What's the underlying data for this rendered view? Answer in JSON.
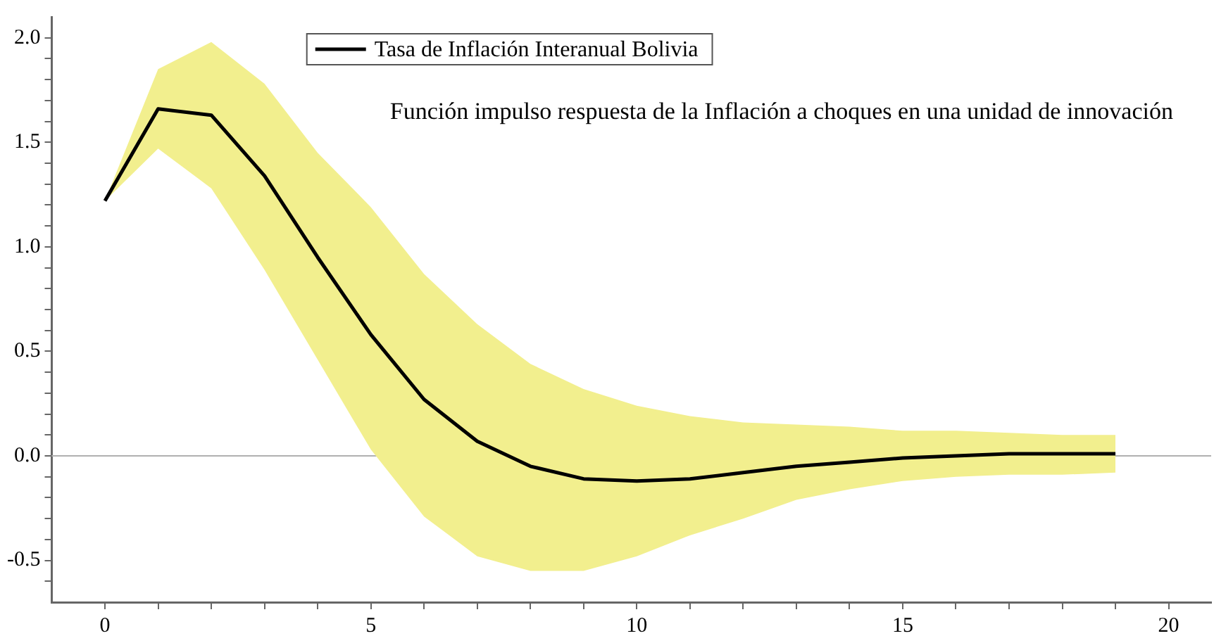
{
  "chart_data": {
    "type": "line",
    "annotations": [
      "Función impulso respuesta de la Inflación a choques en una unidad de innovación"
    ],
    "x": [
      0,
      1,
      2,
      3,
      4,
      5,
      6,
      7,
      8,
      9,
      10,
      11,
      12,
      13,
      14,
      15,
      16,
      17,
      18,
      19
    ],
    "series": [
      {
        "name": "Tasa de Inflación Interanual Bolivia",
        "color": "#000000",
        "values": [
          1.22,
          1.66,
          1.63,
          1.34,
          0.95,
          0.58,
          0.27,
          0.07,
          -0.05,
          -0.11,
          -0.12,
          -0.11,
          -0.08,
          -0.05,
          -0.03,
          -0.01,
          0.0,
          0.01,
          0.01,
          0.01
        ],
        "upper": [
          1.22,
          1.85,
          1.98,
          1.78,
          1.45,
          1.19,
          0.87,
          0.63,
          0.44,
          0.32,
          0.24,
          0.19,
          0.16,
          0.15,
          0.14,
          0.12,
          0.12,
          0.11,
          0.1,
          0.1
        ],
        "lower": [
          1.22,
          1.47,
          1.28,
          0.89,
          0.46,
          0.03,
          -0.29,
          -0.48,
          -0.55,
          -0.55,
          -0.48,
          -0.38,
          -0.3,
          -0.21,
          -0.16,
          -0.12,
          -0.1,
          -0.09,
          -0.09,
          -0.08
        ]
      }
    ],
    "xlim": [
      -1,
      20.8
    ],
    "ylim": [
      -0.7,
      2.1
    ],
    "xticks": [
      0,
      {
        "value": 1,
        "label": null
      },
      {
        "value": 2,
        "label": null
      },
      {
        "value": 3,
        "label": null
      },
      {
        "value": 4,
        "label": null
      },
      5,
      {
        "value": 6,
        "label": null
      },
      {
        "value": 7,
        "label": null
      },
      {
        "value": 8,
        "label": null
      },
      {
        "value": 9,
        "label": null
      },
      10,
      {
        "value": 11,
        "label": null
      },
      {
        "value": 12,
        "label": null
      },
      {
        "value": 13,
        "label": null
      },
      {
        "value": 14,
        "label": null
      },
      15,
      {
        "value": 16,
        "label": null
      },
      {
        "value": 17,
        "label": null
      },
      {
        "value": 18,
        "label": null
      },
      {
        "value": 19,
        "label": null
      },
      20
    ],
    "yticks": [
      {
        "value": -0.6,
        "label": null
      },
      {
        "value": -0.5,
        "label": "-0.5"
      },
      {
        "value": -0.4,
        "label": null
      },
      {
        "value": -0.3,
        "label": null
      },
      {
        "value": -0.2,
        "label": null
      },
      {
        "value": -0.1,
        "label": null
      },
      {
        "value": 0,
        "label": "0.0"
      },
      {
        "value": 0.1,
        "label": null
      },
      {
        "value": 0.2,
        "label": null
      },
      {
        "value": 0.3,
        "label": null
      },
      {
        "value": 0.4,
        "label": null
      },
      {
        "value": 0.5,
        "label": "0.5"
      },
      {
        "value": 0.6,
        "label": null
      },
      {
        "value": 0.7,
        "label": null
      },
      {
        "value": 0.8,
        "label": null
      },
      {
        "value": 0.9,
        "label": null
      },
      {
        "value": 1,
        "label": "1.0"
      },
      {
        "value": 1.1,
        "label": null
      },
      {
        "value": 1.2,
        "label": null
      },
      {
        "value": 1.3,
        "label": null
      },
      {
        "value": 1.4,
        "label": null
      },
      {
        "value": 1.5,
        "label": "1.5"
      },
      {
        "value": 1.6,
        "label": null
      },
      {
        "value": 1.7,
        "label": null
      },
      {
        "value": 1.8,
        "label": null
      },
      {
        "value": 1.9,
        "label": null
      },
      {
        "value": 2,
        "label": "2.0"
      }
    ],
    "ref_lines": [
      {
        "axis": "y",
        "value": 0,
        "color": "#b0b0b0"
      }
    ],
    "legend": "top left"
  }
}
